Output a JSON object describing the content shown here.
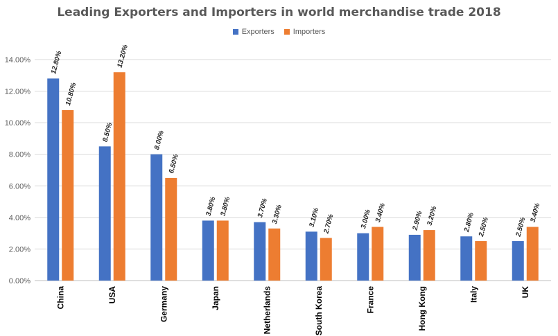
{
  "chart_data": {
    "type": "bar",
    "title": "Leading Exporters and Importers in world merchandise trade 2018",
    "xlabel": "",
    "ylabel": "",
    "ylim": [
      0,
      14
    ],
    "y_ticks": [
      "0.00%",
      "2.00%",
      "4.00%",
      "6.00%",
      "8.00%",
      "10.00%",
      "12.00%",
      "14.00%"
    ],
    "grid": true,
    "legend_position": "top",
    "categories": [
      "China",
      "USA",
      "Germany",
      "Japan",
      "Netherlands",
      "South Korea",
      "France",
      "Hong Kong",
      "Italy",
      "UK"
    ],
    "series": [
      {
        "name": "Exporters",
        "color": "#4472C4",
        "values": [
          12.8,
          8.5,
          8.0,
          3.8,
          3.7,
          3.1,
          3.0,
          2.9,
          2.8,
          2.5
        ],
        "labels": [
          "12.80%",
          "8.50%",
          "8.00%",
          "3.80%",
          "3.70%",
          "3.10%",
          "3.00%",
          "2.90%",
          "2.80%",
          "2.50%"
        ]
      },
      {
        "name": "Importers",
        "color": "#ED7D31",
        "values": [
          10.8,
          13.2,
          6.5,
          3.8,
          3.3,
          2.7,
          3.4,
          3.2,
          2.5,
          3.4
        ],
        "labels": [
          "10.80%",
          "13.20%",
          "6.50%",
          "3.80%",
          "3.30%",
          "2.70%",
          "3.40%",
          "3.20%",
          "2.50%",
          "3.40%"
        ]
      }
    ]
  }
}
